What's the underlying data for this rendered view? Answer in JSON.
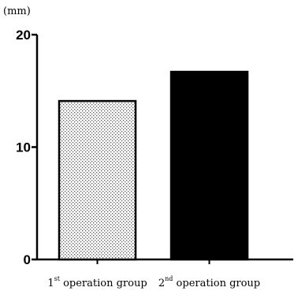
{
  "chart_data": {
    "type": "bar",
    "ylabel": "(mm)",
    "ylim": [
      0,
      20
    ],
    "yticks": [
      0,
      10,
      20
    ],
    "categories": [
      {
        "prefix": "1",
        "sup": "st",
        "rest": " operation group"
      },
      {
        "prefix": "2",
        "sup": "nd",
        "rest": " operation group"
      }
    ],
    "values": [
      14.1,
      16.7
    ],
    "fills": [
      "stipple",
      "#000000"
    ]
  }
}
